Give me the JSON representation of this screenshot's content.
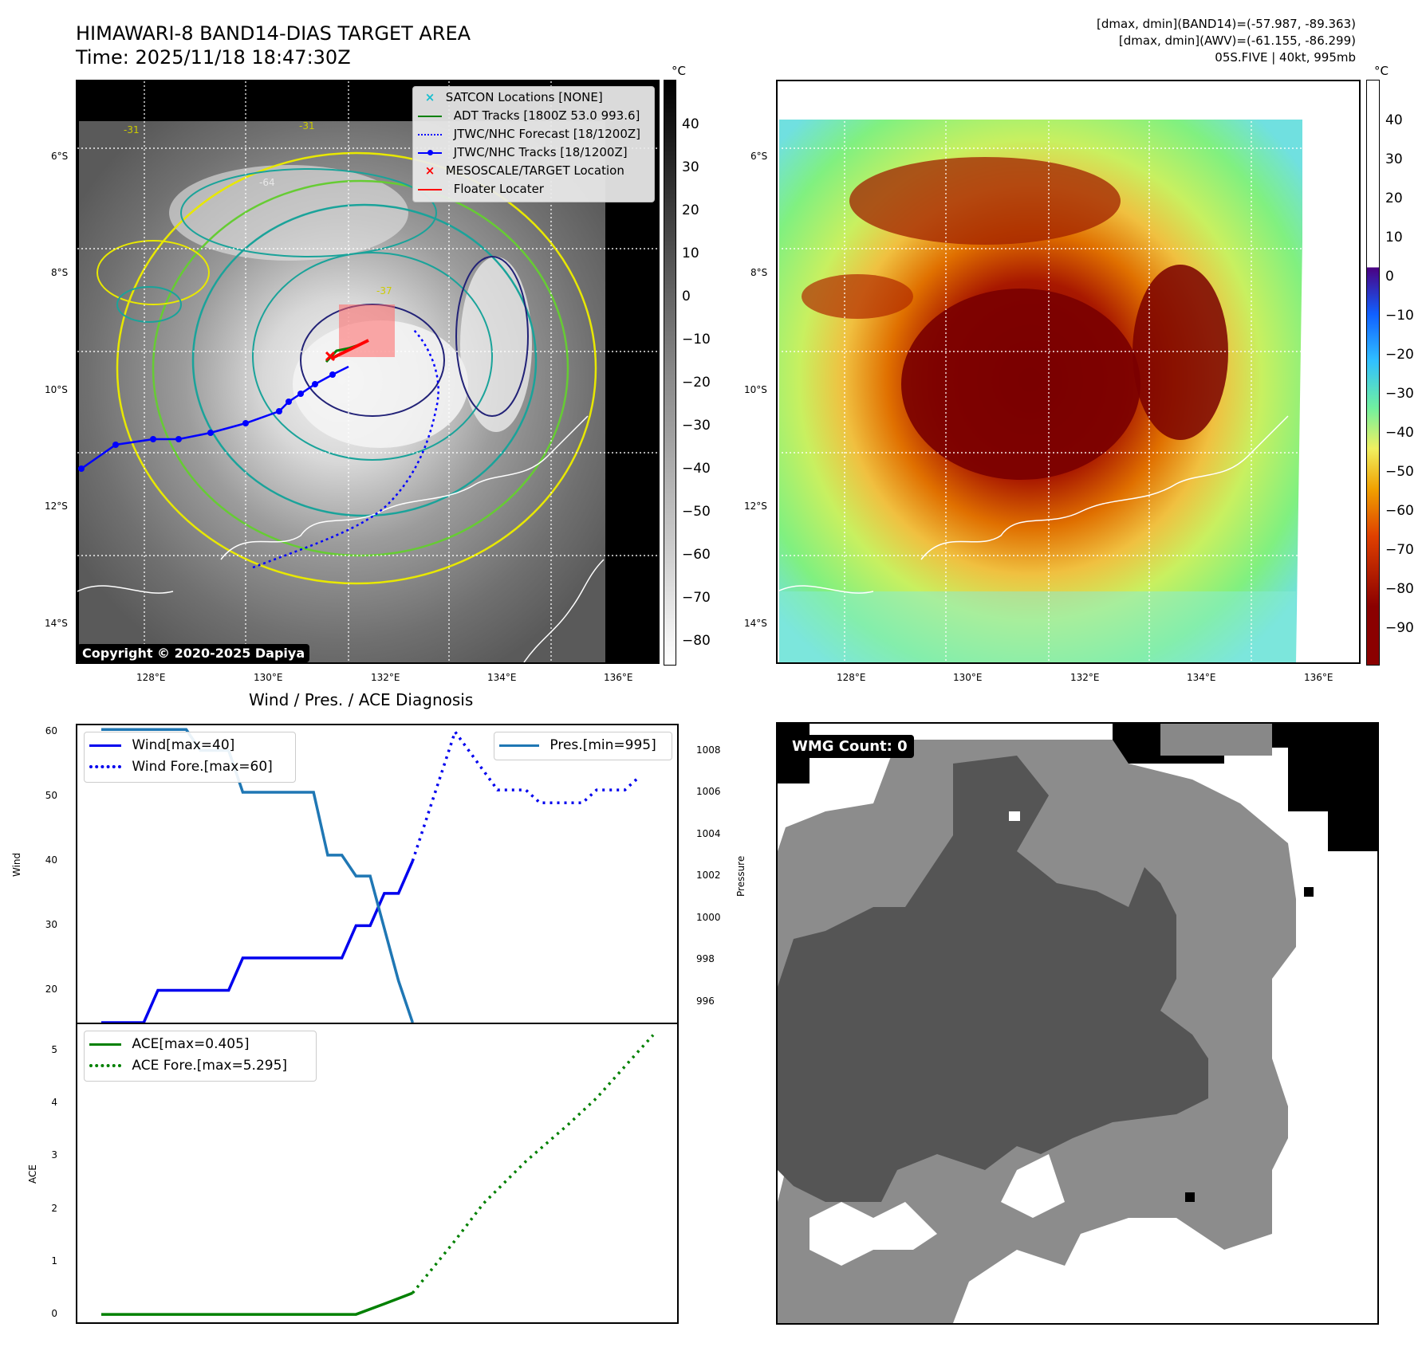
{
  "header": {
    "title_line1": "HIMAWARI-8 BAND14-DIAS TARGET AREA",
    "title_line2": "Time: 2025/11/18 18:47:30Z",
    "info_line1": "[dmax, dmin](BAND14)=(-57.987, -89.363)",
    "info_line2": "[dmax, dmin](AWV)=(-61.155, -86.299)",
    "info_line3": "05S.FIVE | 40kt, 995mb"
  },
  "map_ir": {
    "legend": [
      {
        "label": "SATCON Locations [NONE]",
        "color": "#17becf",
        "marker": "x"
      },
      {
        "label": "ADT Tracks [1800Z 53.0 993.6]",
        "color": "#008000",
        "marker": "line"
      },
      {
        "label": "JTWC/NHC Forecast [18/1200Z]",
        "color": "#0000ff",
        "marker": "dotted"
      },
      {
        "label": "JTWC/NHC Tracks [18/1200Z]",
        "color": "#0000ff",
        "marker": "line-dot"
      },
      {
        "label": "MESOSCALE/TARGET Location",
        "color": "#ff0000",
        "marker": "x"
      },
      {
        "label": "Floater Locater",
        "color": "#ff0000",
        "marker": "line"
      }
    ],
    "copyright": "Copyright © 2020-2025 Dapiya",
    "contour_labels": [
      "-31",
      "-31",
      "-64",
      "-37"
    ],
    "colorbar_unit": "°C",
    "colorbar_ticks": [
      "40",
      "30",
      "20",
      "10",
      "0",
      "−10",
      "−20",
      "−30",
      "−40",
      "−50",
      "−60",
      "−70",
      "−80"
    ]
  },
  "map_awv": {
    "colorbar_unit": "°C",
    "colorbar_ticks": [
      "40",
      "30",
      "20",
      "10",
      "0",
      "−10",
      "−20",
      "−30",
      "−40",
      "−50",
      "−60",
      "−70",
      "−80",
      "−90"
    ]
  },
  "map_axes": {
    "lat_labels": [
      "6°S",
      "8°S",
      "10°S",
      "12°S",
      "14°S"
    ],
    "lon_labels": [
      "128°E",
      "130°E",
      "132°E",
      "134°E",
      "136°E"
    ]
  },
  "diag": {
    "title": "Wind / Pres. / ACE Diagnosis",
    "wind_ylabel": "Wind",
    "pres_ylabel": "Pressure",
    "ace_ylabel": "ACE",
    "legend_wind": "Wind[max=40]",
    "legend_wind_fore": "Wind Fore.[max=60]",
    "legend_pres": "Pres.[min=995]",
    "legend_ace": "ACE[max=0.405]",
    "legend_ace_fore": "ACE Fore.[max=5.295]",
    "wind_ticks": [
      "60",
      "50",
      "40",
      "30",
      "20"
    ],
    "pres_ticks": [
      "1008",
      "1006",
      "1004",
      "1002",
      "1000",
      "998",
      "996"
    ],
    "ace_ticks": [
      "5",
      "4",
      "3",
      "2",
      "1",
      "0"
    ]
  },
  "wmg": {
    "label": "WMG Count: 0"
  },
  "colors": {
    "wind": "#0000ee",
    "pressure": "#1f77b4",
    "ace": "#008000"
  },
  "chart_data": [
    {
      "type": "line",
      "title": "Wind / Pres. / ACE Diagnosis",
      "ylabel": "Wind",
      "ylim": [
        15,
        61
      ],
      "y2label": "Pressure",
      "y2lim": [
        995,
        1009.2
      ],
      "x": [
        0,
        1,
        2,
        3,
        4,
        5,
        6,
        7,
        8,
        9,
        10,
        11,
        12,
        13,
        14,
        15,
        16,
        17,
        18,
        19,
        20,
        21,
        22,
        23,
        24,
        25,
        26,
        27,
        28,
        29,
        30,
        31,
        32,
        33,
        34,
        35,
        36,
        37,
        38,
        39
      ],
      "series": [
        {
          "name": "Wind[max=40]",
          "axis": "left",
          "style": "solid",
          "color": "#0000ee",
          "points": [
            [
              0,
              15
            ],
            [
              3,
              15
            ],
            [
              4,
              20
            ],
            [
              9,
              20
            ],
            [
              10,
              25
            ],
            [
              17,
              25
            ],
            [
              18,
              30
            ],
            [
              19,
              30
            ],
            [
              20,
              35
            ],
            [
              21,
              35
            ],
            [
              22,
              40
            ]
          ]
        },
        {
          "name": "Wind Fore.[max=60]",
          "axis": "left",
          "style": "dotted",
          "color": "#0000ee",
          "points": [
            [
              22,
              40
            ],
            [
              25,
              60
            ],
            [
              28,
              51
            ],
            [
              30,
              51
            ],
            [
              31,
              49
            ],
            [
              34,
              49
            ],
            [
              35,
              51
            ],
            [
              37,
              51
            ],
            [
              38,
              53
            ]
          ]
        },
        {
          "name": "Pres.[min=995]",
          "axis": "right",
          "style": "solid",
          "color": "#1f77b4",
          "points": [
            [
              0,
              1009
            ],
            [
              6,
              1009
            ],
            [
              7,
              1008
            ],
            [
              9,
              1008
            ],
            [
              10,
              1006
            ],
            [
              15,
              1006
            ],
            [
              16,
              1003
            ],
            [
              17,
              1003
            ],
            [
              18,
              1002
            ],
            [
              19,
              1002
            ],
            [
              21,
              997
            ],
            [
              22,
              995
            ]
          ]
        }
      ]
    },
    {
      "type": "line",
      "ylabel": "ACE",
      "ylim": [
        -0.15,
        5.5
      ],
      "x": [
        0,
        1,
        2,
        3,
        4,
        5,
        6,
        7,
        8,
        9,
        10,
        11,
        12,
        13,
        14,
        15,
        16,
        17,
        18,
        19,
        20,
        21,
        22,
        23,
        24,
        25,
        26,
        27,
        28,
        29,
        30,
        31,
        32,
        33,
        34,
        35,
        36,
        37,
        38,
        39
      ],
      "series": [
        {
          "name": "ACE[max=0.405]",
          "style": "solid",
          "color": "#008000",
          "points": [
            [
              0,
              0
            ],
            [
              18,
              0
            ],
            [
              20,
              0.2
            ],
            [
              22,
              0.405
            ]
          ]
        },
        {
          "name": "ACE Fore.[max=5.295]",
          "style": "dotted",
          "color": "#008000",
          "points": [
            [
              22,
              0.405
            ],
            [
              25,
              1.4
            ],
            [
              27,
              2.1
            ],
            [
              30,
              2.9
            ],
            [
              33,
              3.6
            ],
            [
              35,
              4.1
            ],
            [
              38,
              5.0
            ],
            [
              39,
              5.295
            ]
          ]
        }
      ]
    }
  ]
}
